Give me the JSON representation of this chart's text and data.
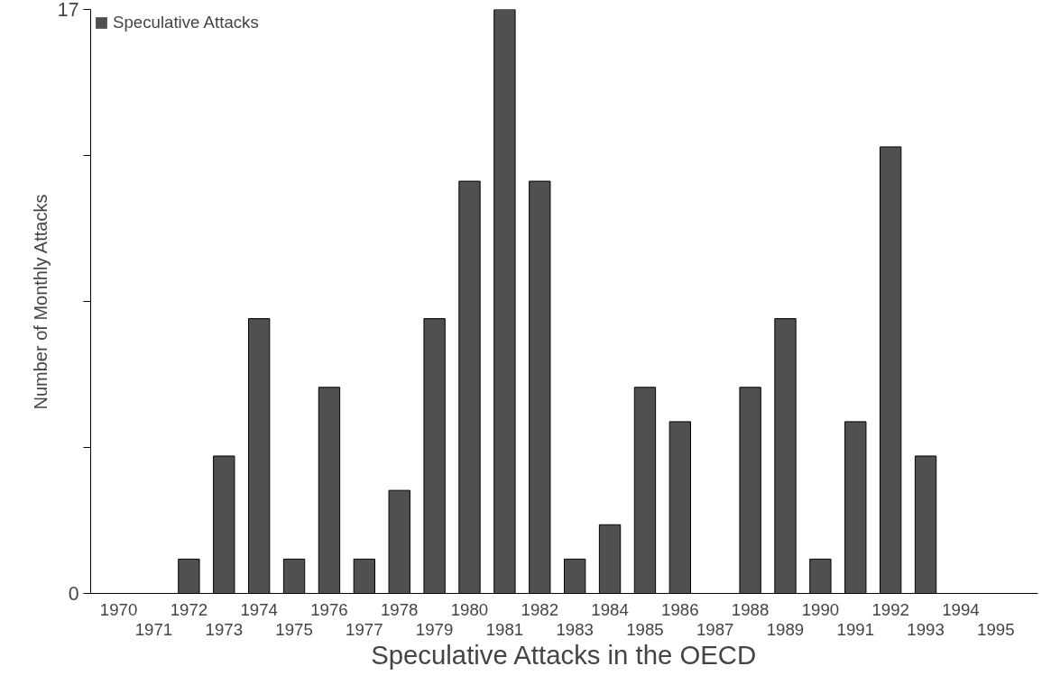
{
  "chart_data": {
    "type": "bar",
    "xlabel": "Speculative Attacks in the OECD",
    "ylabel": "Number of Monthly Attacks",
    "categories": [
      "1970",
      "1971",
      "1972",
      "1973",
      "1974",
      "1975",
      "1976",
      "1977",
      "1978",
      "1979",
      "1980",
      "1981",
      "1982",
      "1983",
      "1984",
      "1985",
      "1986",
      "1987",
      "1988",
      "1989",
      "1990",
      "1991",
      "1992",
      "1993",
      "1994",
      "1995"
    ],
    "series": [
      {
        "name": "Speculative Attacks",
        "color": "#505050",
        "values": [
          0,
          0,
          1,
          4,
          8,
          1,
          6,
          1,
          3,
          8,
          12,
          17,
          12,
          1,
          2,
          6,
          5,
          0,
          6,
          8,
          1,
          5,
          13,
          4,
          0,
          0
        ]
      }
    ],
    "ylim": [
      0,
      17
    ],
    "yticks": [
      0,
      {
        "value": 4.25,
        "label": null
      },
      {
        "value": 8.5,
        "label": null
      },
      {
        "value": 12.75,
        "label": null
      },
      17
    ],
    "grid": false,
    "legend": "top left"
  }
}
